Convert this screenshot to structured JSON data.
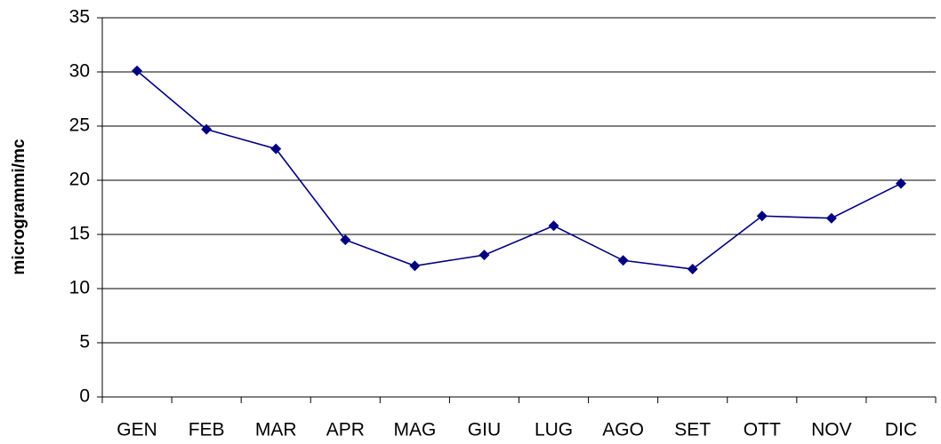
{
  "chart_data": {
    "type": "line",
    "y_label": "microgrammi/mc",
    "categories": [
      "GEN",
      "FEB",
      "MAR",
      "APR",
      "MAG",
      "GIU",
      "LUG",
      "AGO",
      "SET",
      "OTT",
      "NOV",
      "DIC"
    ],
    "values": [
      30.1,
      24.7,
      22.9,
      14.5,
      12.1,
      13.1,
      15.8,
      12.6,
      11.8,
      16.7,
      16.5,
      19.7
    ],
    "color": "#000080",
    "ylim": [
      0,
      35
    ],
    "yticks": [
      0,
      5,
      10,
      15,
      20,
      25,
      30,
      35
    ],
    "grid": true
  }
}
